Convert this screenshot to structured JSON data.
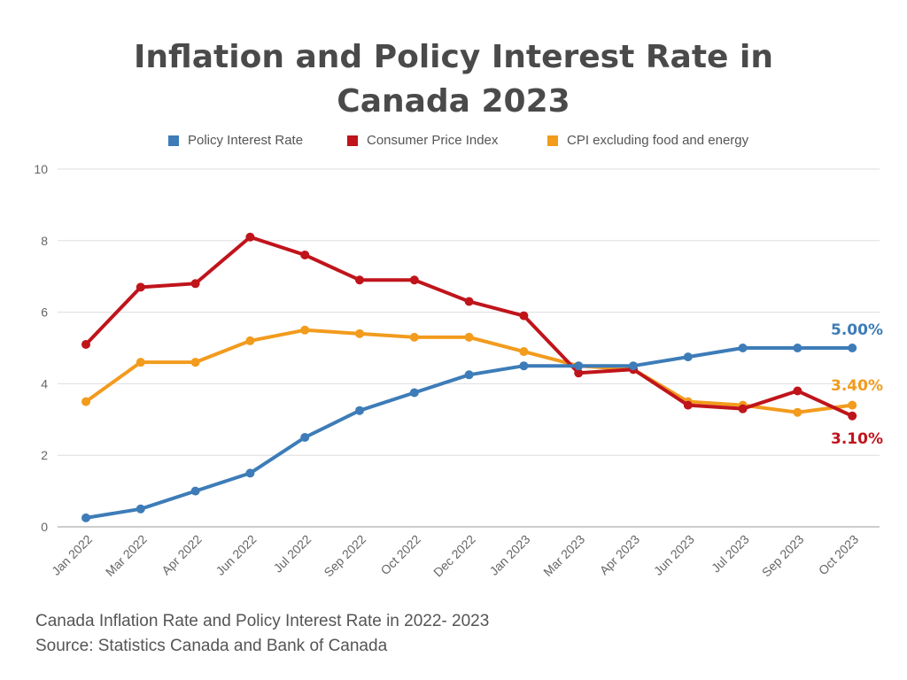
{
  "title_lines": [
    "Inflation and Policy Interest Rate in",
    "Canada 2023"
  ],
  "footer": {
    "caption": "Canada Inflation Rate and Policy Interest Rate in 2022- 2023",
    "source": "Source: Statistics Canada and Bank of Canada"
  },
  "chart_data": {
    "type": "line",
    "title": "Inflation and Policy Interest Rate in Canada 2023",
    "xlabel": "",
    "ylabel": "",
    "ylim": [
      0,
      10
    ],
    "yticks": [
      0,
      2,
      4,
      6,
      8,
      10
    ],
    "grid": true,
    "legend_position": "top",
    "categories": [
      "Jan 2022",
      "Mar 2022",
      "Apr 2022",
      "Jun 2022",
      "Jul 2022",
      "Sep 2022",
      "Oct 2022",
      "Dec 2022",
      "Jan 2023",
      "Mar 2023",
      "Apr 2023",
      "Jun 2023",
      "Jul 2023",
      "Sep 2023",
      "Oct 2023"
    ],
    "series": [
      {
        "name": "Policy Interest Rate",
        "color": "#3d7cb8",
        "values": [
          0.25,
          0.5,
          1.0,
          1.5,
          2.5,
          3.25,
          3.75,
          4.25,
          4.5,
          4.5,
          4.5,
          4.75,
          5.0,
          5.0,
          5.0
        ],
        "end_label": "5.00%"
      },
      {
        "name": "Consumer Price Index",
        "color": "#c0141b",
        "values": [
          5.1,
          6.7,
          6.8,
          8.1,
          7.6,
          6.9,
          6.9,
          6.3,
          5.9,
          4.3,
          4.4,
          3.4,
          3.3,
          3.8,
          3.1
        ],
        "end_label": "3.10%"
      },
      {
        "name": "CPI excluding food and energy",
        "color": "#f29b1d",
        "values": [
          3.5,
          4.6,
          4.6,
          5.2,
          5.5,
          5.4,
          5.3,
          5.3,
          4.9,
          4.5,
          4.4,
          3.5,
          3.4,
          3.2,
          3.4
        ],
        "end_label": "3.40%"
      }
    ]
  }
}
